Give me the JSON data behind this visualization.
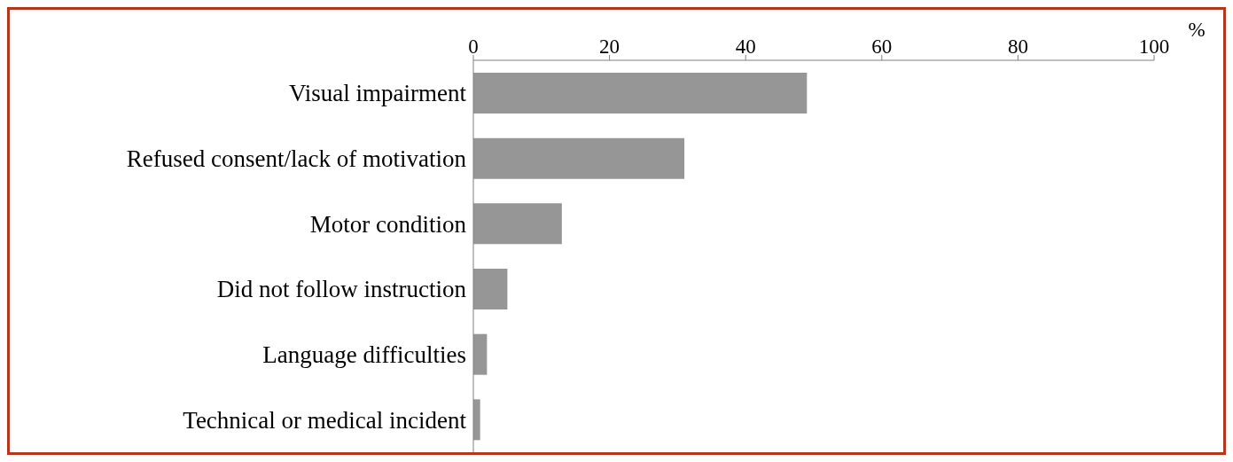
{
  "chart_data": {
    "type": "bar",
    "orientation": "horizontal",
    "xlabel": "%",
    "categories": [
      "Visual impairment",
      "Refused consent/lack of motivation",
      "Motor condition",
      "Did not follow instruction",
      "Language difficulties",
      "Technical or medical incident"
    ],
    "values": [
      49,
      31,
      13,
      5,
      2,
      1
    ],
    "color": "#969696",
    "xlim": [
      0,
      100
    ],
    "xticks": [
      0,
      20,
      40,
      60,
      80,
      100
    ],
    "grid": false,
    "legend": false
  }
}
